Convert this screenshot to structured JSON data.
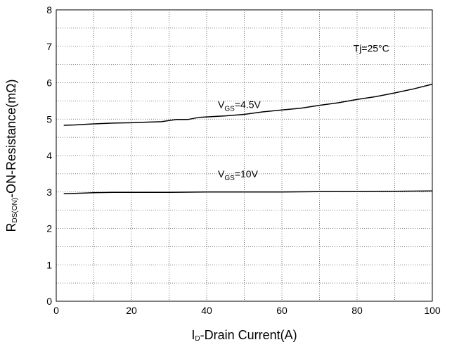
{
  "chart_data": {
    "type": "line",
    "xlabel": {
      "prefix": "I",
      "sub": "D",
      "rest": "-Drain Current(A)"
    },
    "ylabel": {
      "prefix": "R",
      "sub": "DS(ON)",
      "rest": "-ON-Resistance(mΩ)"
    },
    "xlim": [
      0,
      100
    ],
    "ylim": [
      0,
      8
    ],
    "xticks": [
      0,
      20,
      40,
      60,
      80,
      100
    ],
    "yticks": [
      0,
      1,
      2,
      3,
      4,
      5,
      6,
      7,
      8
    ],
    "grid": {
      "major": true,
      "minor": true,
      "style": "dotted"
    },
    "series": [
      {
        "name": "VGS=4.5V",
        "x": [
          2,
          5,
          10,
          15,
          20,
          25,
          28,
          30,
          32,
          35,
          38,
          40,
          45,
          50,
          55,
          60,
          65,
          70,
          75,
          80,
          85,
          90,
          95,
          100
        ],
        "y": [
          4.83,
          4.84,
          4.87,
          4.89,
          4.9,
          4.92,
          4.93,
          4.96,
          4.99,
          4.99,
          5.05,
          5.06,
          5.09,
          5.13,
          5.2,
          5.25,
          5.3,
          5.38,
          5.45,
          5.54,
          5.62,
          5.72,
          5.83,
          5.96
        ]
      },
      {
        "name": "VGS=10V",
        "x": [
          2,
          5,
          10,
          15,
          20,
          30,
          40,
          50,
          60,
          70,
          80,
          90,
          100
        ],
        "y": [
          2.95,
          2.96,
          2.98,
          2.99,
          2.99,
          2.99,
          3.0,
          3.0,
          3.0,
          3.01,
          3.01,
          3.02,
          3.03
        ]
      }
    ],
    "annotations": [
      {
        "main": "V",
        "sub": "GS",
        "rest": "=4.5V",
        "x": 43,
        "y": 5.3
      },
      {
        "main": "V",
        "sub": "GS",
        "rest": "=10V",
        "x": 43,
        "y": 3.4
      },
      {
        "main": "Tj=25°C",
        "sub": "",
        "rest": "",
        "x": 79,
        "y": 6.85
      }
    ]
  }
}
